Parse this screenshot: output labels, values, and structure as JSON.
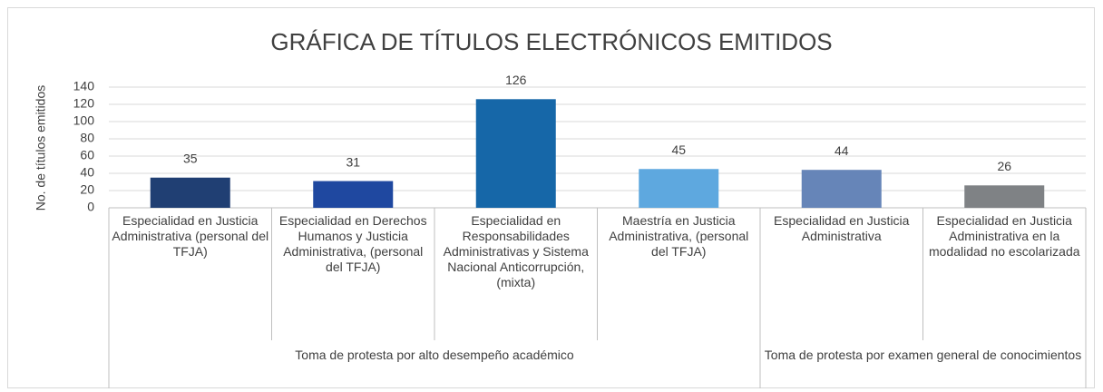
{
  "chart_data": {
    "type": "bar",
    "title": "GRÁFICA DE TÍTULOS ELECTRÓNICOS EMITIDOS",
    "y_label": "No. de títulos emitidos",
    "ylim": [
      0,
      140
    ],
    "yticks": [
      0,
      20,
      40,
      60,
      80,
      100,
      120,
      140
    ],
    "grid": true,
    "groups": [
      {
        "name": "Toma de protesta por alto desempeño académico",
        "categories": [
          "Especialidad en Justicia Administrativa (personal del TFJA)",
          "Especialidad en Derechos Humanos y Justicia Administrativa, (personal del TFJA)",
          "Especialidad en Responsabilidades Administrativas y Sistema Nacional Anticorrupción, (mixta)",
          "Maestría en Justicia Administrativa, (personal del TFJA)"
        ],
        "values": [
          35,
          31,
          126,
          45
        ],
        "colors": [
          "#203f73",
          "#1f48a0",
          "#1667a8",
          "#5ea8df"
        ]
      },
      {
        "name": "Toma de protesta por examen general de conocimientos",
        "categories": [
          "Especialidad en Justicia Administrativa",
          "Especialidad en Justicia Administrativa en la modalidad no escolarizada"
        ],
        "values": [
          44,
          26
        ],
        "colors": [
          "#6685b8",
          "#7f8285"
        ]
      }
    ]
  }
}
